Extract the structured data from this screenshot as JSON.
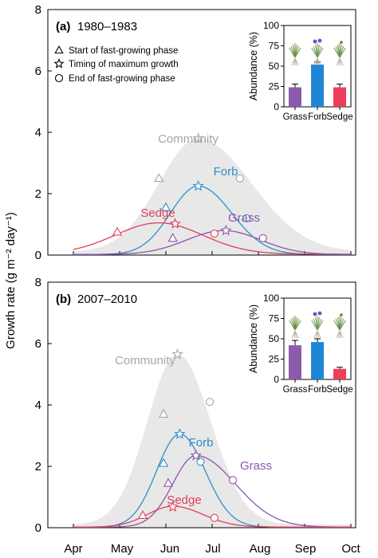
{
  "y_axis_label": "Growth rate (g m⁻² day⁻¹)",
  "x_months": [
    "Apr",
    "May",
    "Jun",
    "Jul",
    "Aug",
    "Sep",
    "Oct"
  ],
  "legend": {
    "start": "Start of fast-growing phase",
    "max": "Timing of maximum growth",
    "end": "End of fast-growing phase"
  },
  "colors": {
    "community": "#e8e8e8",
    "community_marker": "#a6a6a6",
    "forb": "#2e8fc8",
    "grass": "#8e55a8",
    "sedge": "#e0405a",
    "inset_grass": "#8c5bab",
    "inset_forb": "#1f86d6",
    "inset_sedge": "#ee3e5b"
  },
  "chart_data": [
    {
      "type": "line",
      "panel_label": "(a)",
      "period": "1980–1983",
      "ylabel": "Growth rate (g m⁻² day⁻¹)",
      "ylim": [
        0,
        8
      ],
      "yticks": [
        0,
        2,
        4,
        6,
        8
      ],
      "x_ticks": [
        "Apr",
        "May",
        "Jun",
        "Jul",
        "Aug",
        "Sep",
        "Oct"
      ],
      "series": [
        {
          "name": "Community",
          "kind": "area",
          "peak_x": 6.7,
          "peak_y": 3.8,
          "sd_left": 0.85,
          "sd_right": 1.15,
          "base_y": 0.1,
          "markers": {
            "start": [
              5.85,
              2.5
            ],
            "max": [
              6.7,
              3.8
            ],
            "end": [
              7.6,
              2.5
            ]
          }
        },
        {
          "name": "Forb",
          "peak_x": 6.7,
          "peak_y": 2.25,
          "sd_left": 0.6,
          "sd_right": 0.72,
          "base_y": 0.02,
          "markers": {
            "start": [
              6.0,
              1.55
            ],
            "max": [
              6.7,
              2.25
            ],
            "end": [
              7.75,
              1.2
            ]
          }
        },
        {
          "name": "Sedge",
          "peak_x": 5.85,
          "peak_y": 1.05,
          "sd_left": 0.95,
          "sd_right": 0.95,
          "base_y": 0.03,
          "markers": {
            "start": [
              4.95,
              0.75
            ],
            "max": [
              6.2,
              1.02
            ],
            "end": [
              7.05,
              0.7
            ]
          }
        },
        {
          "name": "Grass",
          "peak_x": 7.25,
          "peak_y": 0.8,
          "sd_left": 0.8,
          "sd_right": 0.8,
          "base_y": 0.02,
          "markers": {
            "start": [
              6.15,
              0.55
            ],
            "max": [
              7.3,
              0.8
            ],
            "end": [
              8.1,
              0.55
            ]
          }
        }
      ],
      "inset": {
        "ylabel": "Abundance (%)",
        "ylim": [
          0,
          100
        ],
        "yticks": [
          0,
          25,
          50,
          75,
          100
        ],
        "categories": [
          "Grass",
          "Forb",
          "Sedge"
        ],
        "values": [
          24,
          52,
          24
        ],
        "errors": [
          4,
          3,
          4
        ]
      }
    },
    {
      "type": "line",
      "panel_label": "(b)",
      "period": "2007–2010",
      "ylabel": "Growth rate (g m⁻² day⁻¹)",
      "ylim": [
        0,
        8
      ],
      "yticks": [
        0,
        2,
        4,
        6,
        8
      ],
      "x_ticks": [
        "Apr",
        "May",
        "Jun",
        "Jul",
        "Aug",
        "Sep",
        "Oct"
      ],
      "series": [
        {
          "name": "Community",
          "kind": "area",
          "peak_x": 6.25,
          "peak_y": 5.65,
          "sd_left": 0.65,
          "sd_right": 0.72,
          "base_y": 0.1,
          "markers": {
            "start": [
              5.95,
              3.7
            ],
            "max": [
              6.25,
              5.65
            ],
            "end": [
              6.95,
              4.1
            ]
          }
        },
        {
          "name": "Forb",
          "peak_x": 6.3,
          "peak_y": 3.05,
          "sd_left": 0.5,
          "sd_right": 0.55,
          "base_y": 0.02,
          "markers": {
            "start": [
              5.95,
              2.1
            ],
            "max": [
              6.3,
              3.05
            ],
            "end": [
              6.75,
              2.15
            ]
          }
        },
        {
          "name": "Grass",
          "peak_x": 6.65,
          "peak_y": 2.35,
          "sd_left": 0.5,
          "sd_right": 0.85,
          "base_y": 0.02,
          "markers": {
            "start": [
              6.05,
              1.45
            ],
            "max": [
              6.65,
              2.35
            ],
            "end": [
              7.45,
              1.55
            ]
          }
        },
        {
          "name": "Sedge",
          "peak_x": 6.15,
          "peak_y": 0.7,
          "sd_left": 0.55,
          "sd_right": 0.65,
          "base_y": 0.02,
          "markers": {
            "start": [
              5.5,
              0.4
            ],
            "max": [
              6.15,
              0.68
            ],
            "end": [
              7.05,
              0.32
            ]
          }
        }
      ],
      "inset": {
        "ylabel": "Abundance (%)",
        "ylim": [
          0,
          100
        ],
        "yticks": [
          0,
          25,
          50,
          75,
          100
        ],
        "categories": [
          "Grass",
          "Forb",
          "Sedge"
        ],
        "values": [
          42,
          46,
          13
        ],
        "errors": [
          6,
          4,
          2
        ]
      }
    }
  ]
}
